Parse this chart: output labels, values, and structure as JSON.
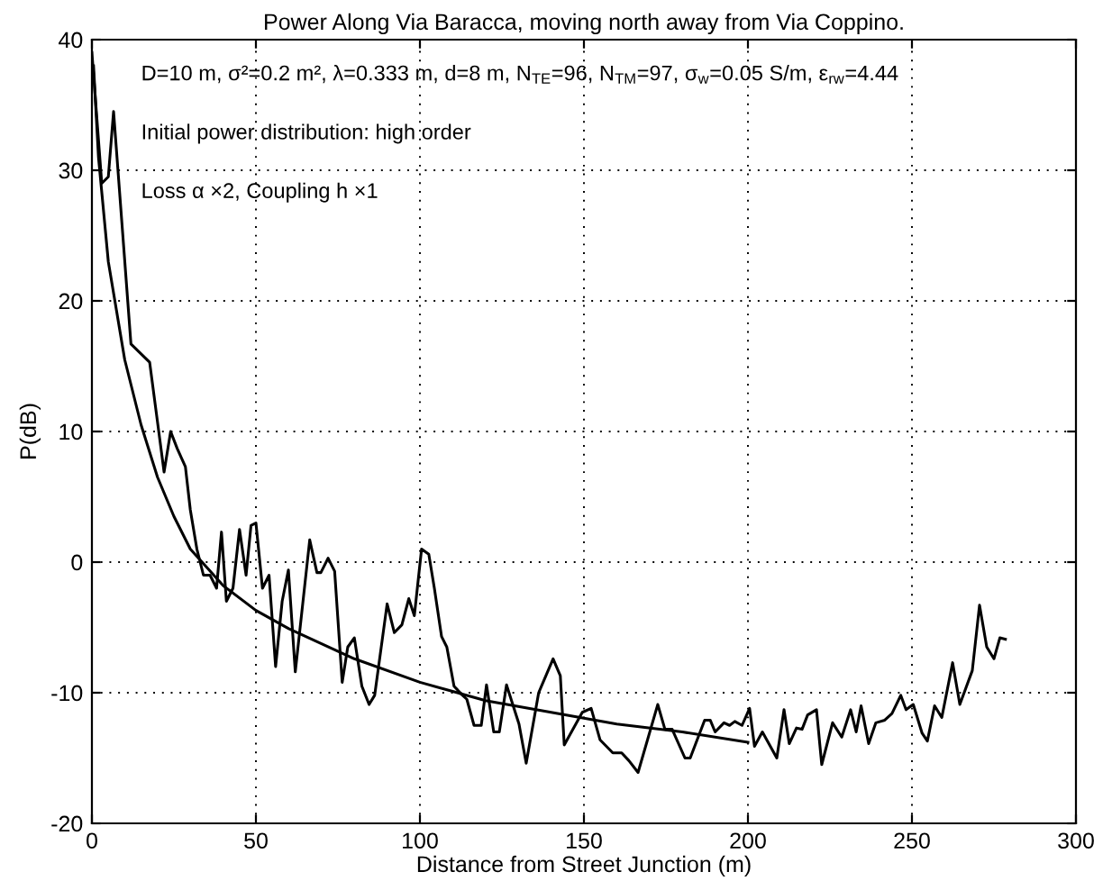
{
  "chart_data": {
    "type": "line",
    "title": "Power Along Via Baracca, moving north away from Via Coppino.",
    "xlabel": "Distance from Street Junction (m)",
    "ylabel": "P(dB)",
    "annotations": [
      "D=10 m, σ²=0.2 m², λ=0.333 m, d=8 m, N$_{TE}$=96, N$_{TM}$=97, σ$_{w}$=0.05 S/m, ε$_{rw}$=4.44",
      "Initial power distribution: high order",
      "Loss α ×2, Coupling h ×1"
    ],
    "series": [
      {
        "color": "#000000",
        "x": [
          0,
          3,
          5,
          6.6,
          11.9,
          17.6,
          22,
          24,
          26,
          28.5,
          30,
          32,
          34,
          36,
          38,
          39.5,
          41,
          43,
          45,
          47,
          48.5,
          50,
          52,
          54,
          56,
          58,
          59.9,
          62,
          66.4,
          68.6,
          69.8,
          72,
          74,
          76.3,
          78,
          80,
          82.3,
          84.5,
          86.2,
          90,
          92.2,
          94.5,
          96.6,
          98.3,
          100.5,
          102.7,
          104.4,
          106.6,
          108.2,
          110.4,
          113,
          114.3,
          116.5,
          118.7,
          120.3,
          122.5,
          124.2,
          126.4,
          130.2,
          132.4,
          136.2,
          140.6,
          142.8,
          144,
          149.5,
          152.2,
          154.9,
          158.8,
          161.5,
          163.7,
          166.5,
          172.5,
          174.7,
          176.9,
          180.8,
          182.4,
          186.8,
          188.5,
          190,
          192.7,
          194.4,
          196,
          198.2,
          200.5,
          202,
          204.4,
          208.8,
          211,
          212.6,
          214.8,
          216.5,
          218.2,
          220.9,
          222.5,
          225.8,
          228.6,
          231.3,
          233,
          234.5,
          236.8,
          239,
          241.7,
          243.9,
          246.6,
          248.2,
          250.4,
          253.1,
          254.7,
          256.9,
          259.1,
          262.4,
          264.6,
          268.4,
          270.6,
          272.8,
          275,
          276.8,
          278.5
        ],
        "values": [
          39,
          29,
          29.5,
          34.5,
          16.7,
          15.3,
          6.9,
          10,
          8.7,
          7.3,
          4,
          1,
          -1,
          -1,
          -2,
          2.3,
          -3,
          -2,
          2.5,
          -1,
          2.8,
          3,
          -2,
          -1,
          -8,
          -3,
          -0.6,
          -8.4,
          1.7,
          -0.8,
          -0.8,
          0.3,
          -0.7,
          -9.2,
          -6.5,
          -5.8,
          -9.5,
          -10.9,
          -10.2,
          -3.2,
          -5.4,
          -4.8,
          -2.8,
          -4.1,
          1,
          0.6,
          -2,
          -5.7,
          -6.5,
          -9.5,
          -10.2,
          -10.5,
          -12.5,
          -12.5,
          -9.4,
          -13,
          -13,
          -9.4,
          -12.4,
          -15.4,
          -10,
          -7.4,
          -8.7,
          -14,
          -11.5,
          -11.2,
          -13.6,
          -14.6,
          -14.6,
          -15.2,
          -16.1,
          -10.9,
          -12.8,
          -12.8,
          -15,
          -15,
          -12.1,
          -12.1,
          -13,
          -12.3,
          -12.5,
          -12.2,
          -12.5,
          -11.2,
          -14.1,
          -13,
          -15,
          -11.3,
          -13.9,
          -12.7,
          -12.8,
          -11.7,
          -11.3,
          -15.5,
          -12.3,
          -13.4,
          -11.3,
          -13,
          -11,
          -13.9,
          -12.3,
          -12.1,
          -11.6,
          -10.2,
          -11.3,
          -10.9,
          -13.1,
          -13.7,
          -11,
          -11.9,
          -7.7,
          -10.9,
          -8.3,
          -3.3,
          -6.5,
          -7.4,
          -5.8,
          -5.9
        ]
      },
      {
        "color": "#000000",
        "x": [
          0.5,
          2,
          5,
          10,
          15,
          20,
          25,
          30,
          40,
          50,
          60,
          80,
          100,
          120,
          140,
          160,
          180,
          200
        ],
        "values": [
          38,
          31,
          23,
          15.5,
          10.5,
          6.5,
          3.5,
          1,
          -1.8,
          -3.7,
          -5.1,
          -7.4,
          -9.2,
          -10.6,
          -11.5,
          -12.4,
          -13,
          -13.8
        ]
      }
    ],
    "xlim": [
      0,
      300
    ],
    "xticks": [
      0,
      50,
      100,
      150,
      200,
      250,
      300
    ],
    "ylim": [
      -20,
      40
    ],
    "yticks": [
      -20,
      -10,
      0,
      10,
      20,
      30,
      40
    ],
    "grid": true,
    "line_style": "solid",
    "marker": "none"
  }
}
